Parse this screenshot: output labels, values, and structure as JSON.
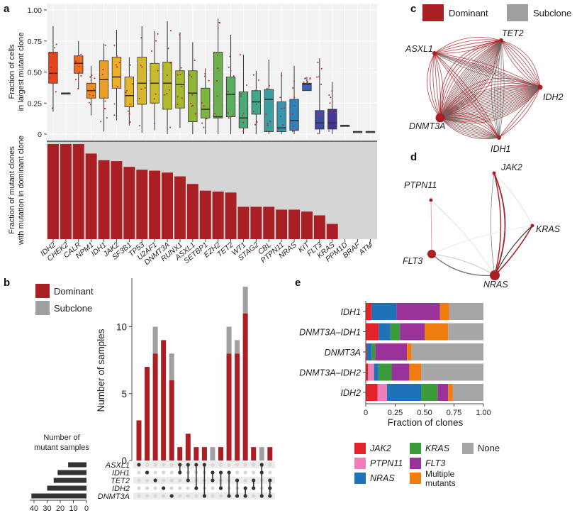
{
  "panel_labels": {
    "a": "a",
    "b": "b",
    "c": "c",
    "d": "d",
    "e": "e"
  },
  "colors": {
    "dominant": "#a91f24",
    "subclone": "#a0a0a0",
    "jak2": "#e3222a",
    "ptpn11": "#ef7fb8",
    "nras": "#1f72b8",
    "kras": "#3c9b3b",
    "flt3": "#993399",
    "multiple": "#f07d0f",
    "none": "#a6a6a6"
  },
  "chart_data": [
    {
      "id": "a_top",
      "type": "box",
      "ylabel": [
        "Fraction of cells",
        "in largest mutant clone"
      ],
      "yticks": [
        "0",
        "0.25",
        "0.50",
        "0.75",
        "1.00"
      ],
      "ylim": [
        0,
        1
      ],
      "categories": [
        "IDH2",
        "CHEK2",
        "CALR",
        "NPM1",
        "IDH1",
        "JAK2",
        "SF3B1",
        "TP53",
        "U2AF1",
        "DNMT3A",
        "RUNX1",
        "ASXL1",
        "SETBP1",
        "EZH2",
        "TET2",
        "WT1",
        "STAG2",
        "CBL",
        "PTPN11",
        "NRAS",
        "KIT",
        "FLT3",
        "KRAS",
        "PPM1D",
        "BRAF",
        "ATM"
      ],
      "box_colors": [
        "#e8431f",
        "#6b6b6b",
        "#ec6a21",
        "#ee8a20",
        "#ed9e26",
        "#efae2a",
        "#e0b72c",
        "#d4b72b",
        "#c9bb2a",
        "#b5b92c",
        "#a2b92e",
        "#8fb636",
        "#7db53f",
        "#6bb04f",
        "#5bad60",
        "#4aa977",
        "#40a68c",
        "#3a9fa0",
        "#3596b2",
        "#2e83bd",
        "#3563b5",
        "#3f4aa6",
        "#463598",
        "#6b6b6b",
        "#6b6b6b",
        "#6b6b6b"
      ],
      "boxes": [
        {
          "q1": 0.41,
          "med": 0.49,
          "q3": 0.66,
          "lo": 0.18,
          "hi": 0.87
        },
        {
          "q1": 0.33,
          "med": 0.33,
          "q3": 0.33,
          "lo": 0.33,
          "hi": 0.33
        },
        {
          "q1": 0.49,
          "med": 0.57,
          "q3": 0.63,
          "lo": 0.36,
          "hi": 0.75
        },
        {
          "q1": 0.29,
          "med": 0.35,
          "q3": 0.41,
          "lo": 0.15,
          "hi": 0.55
        },
        {
          "q1": 0.29,
          "med": 0.44,
          "q3": 0.59,
          "lo": 0.02,
          "hi": 0.73
        },
        {
          "q1": 0.37,
          "med": 0.46,
          "q3": 0.62,
          "lo": 0.11,
          "hi": 0.84
        },
        {
          "q1": 0.22,
          "med": 0.31,
          "q3": 0.46,
          "lo": 0.07,
          "hi": 0.62
        },
        {
          "q1": 0.24,
          "med": 0.41,
          "q3": 0.62,
          "lo": 0.01,
          "hi": 0.87
        },
        {
          "q1": 0.25,
          "med": 0.41,
          "q3": 0.57,
          "lo": 0.03,
          "hi": 0.83
        },
        {
          "q1": 0.2,
          "med": 0.41,
          "q3": 0.58,
          "lo": 0.0,
          "hi": 0.91
        },
        {
          "q1": 0.21,
          "med": 0.4,
          "q3": 0.51,
          "lo": 0.05,
          "hi": 0.82
        },
        {
          "q1": 0.1,
          "med": 0.33,
          "q3": 0.51,
          "lo": 0.0,
          "hi": 0.74
        },
        {
          "q1": 0.13,
          "med": 0.2,
          "q3": 0.37,
          "lo": 0.0,
          "hi": 0.53
        },
        {
          "q1": 0.13,
          "med": 0.14,
          "q3": 0.66,
          "lo": 0.0,
          "hi": 0.93
        },
        {
          "q1": 0.14,
          "med": 0.32,
          "q3": 0.46,
          "lo": 0.0,
          "hi": 0.8
        },
        {
          "q1": 0.05,
          "med": 0.13,
          "q3": 0.34,
          "lo": 0.0,
          "hi": 0.64
        },
        {
          "q1": 0.16,
          "med": 0.26,
          "q3": 0.35,
          "lo": 0.0,
          "hi": 0.51
        },
        {
          "q1": 0.02,
          "med": 0.28,
          "q3": 0.36,
          "lo": 0.0,
          "hi": 0.6
        },
        {
          "q1": 0.02,
          "med": 0.05,
          "q3": 0.26,
          "lo": 0.0,
          "hi": 0.5
        },
        {
          "q1": 0.03,
          "med": 0.11,
          "q3": 0.28,
          "lo": 0.0,
          "hi": 0.55
        },
        {
          "q1": 0.35,
          "med": 0.4,
          "q3": 0.41,
          "lo": 0.35,
          "hi": 0.46
        },
        {
          "q1": 0.04,
          "med": 0.09,
          "q3": 0.19,
          "lo": 0.0,
          "hi": 0.61
        },
        {
          "q1": 0.04,
          "med": 0.09,
          "q3": 0.2,
          "lo": 0.0,
          "hi": 0.42
        },
        {
          "q1": 0.07,
          "med": 0.07,
          "q3": 0.07,
          "lo": 0.07,
          "hi": 0.07
        },
        {
          "q1": 0.02,
          "med": 0.02,
          "q3": 0.02,
          "lo": 0.02,
          "hi": 0.02
        },
        {
          "q1": 0.02,
          "med": 0.02,
          "q3": 0.02,
          "lo": 0.02,
          "hi": 0.02
        }
      ]
    },
    {
      "id": "a_bottom",
      "type": "bar",
      "ylabel": [
        "Fraction of mutant clones",
        "with mutation in  dominant clone"
      ],
      "categories": [
        "IDH2",
        "CHEK2",
        "CALR",
        "NPM1",
        "IDH1",
        "JAK2",
        "SF3B1",
        "TP53",
        "U2AF1",
        "DNMT3A",
        "RUNX1",
        "ASXL1",
        "SETBP1",
        "EZH2",
        "TET2",
        "WT1",
        "STAG2",
        "CBL",
        "PTPN11",
        "NRAS",
        "KIT",
        "FLT3",
        "KRAS",
        "PPM1D",
        "BRAF",
        "ATM"
      ],
      "values": [
        1.0,
        1.0,
        1.0,
        0.9,
        0.83,
        0.82,
        0.76,
        0.73,
        0.72,
        0.7,
        0.66,
        0.58,
        0.51,
        0.5,
        0.49,
        0.34,
        0.34,
        0.34,
        0.31,
        0.31,
        0.29,
        0.25,
        0.16,
        0,
        0,
        0
      ],
      "ylim": [
        0,
        1
      ]
    },
    {
      "id": "b",
      "type": "bar",
      "subtype": "upset",
      "legend": [
        "Dominant",
        "Subclone"
      ],
      "ylabel": "Number of samples",
      "yticks": [
        "0",
        "5",
        "10"
      ],
      "ylim": [
        0,
        13
      ],
      "series": [
        {
          "name": "Dominant",
          "values": [
            3,
            7,
            8,
            9,
            6,
            1,
            2,
            1,
            1,
            0,
            1,
            8,
            8,
            11,
            1,
            0,
            1
          ]
        },
        {
          "name": "Subclone",
          "values": [
            0,
            0,
            2,
            0,
            2,
            0,
            0,
            0,
            0,
            1,
            0,
            2,
            1,
            2,
            0,
            1,
            0
          ]
        }
      ],
      "sets": [
        "ASXL1",
        "IDH1",
        "TET2",
        "IDH2",
        "DNMT3A"
      ],
      "set_sizes": [
        14,
        22,
        25,
        30,
        42
      ],
      "set_axis_label": [
        "Number of",
        "mutant samples"
      ],
      "set_axis_ticks": [
        "40",
        "30",
        "20",
        "10",
        "0"
      ],
      "combos": [
        [
          0
        ],
        [
          1
        ],
        [
          2
        ],
        [
          3
        ],
        [
          4
        ],
        [
          0,
          1
        ],
        [
          0,
          2
        ],
        [
          0,
          3
        ],
        [
          0,
          4
        ],
        [
          1,
          2
        ],
        [
          1,
          3
        ],
        [
          1,
          4
        ],
        [
          2,
          4
        ],
        [
          3,
          4
        ],
        [
          2,
          3
        ],
        [
          0,
          1,
          4
        ],
        [
          2,
          3,
          4
        ]
      ]
    },
    {
      "id": "e",
      "type": "bar",
      "subtype": "stacked-horizontal",
      "xlabel": "Fraction of clones",
      "xticks": [
        "0",
        "0.25",
        "0.50",
        "0.75",
        "1.00"
      ],
      "xlim": [
        0,
        1
      ],
      "categories": [
        "IDH1",
        "DNMT3A–IDH1",
        "DNMT3A",
        "DNMT3A–IDH2",
        "IDH2"
      ],
      "series": [
        {
          "name": "JAK2",
          "values": [
            0.05,
            0.11,
            0.01,
            0.02,
            0.1
          ]
        },
        {
          "name": "PTPN11",
          "values": [
            0,
            0,
            0,
            0.05,
            0.08
          ]
        },
        {
          "name": "NRAS",
          "values": [
            0.21,
            0.1,
            0.04,
            0.04,
            0.29
          ]
        },
        {
          "name": "KRAS",
          "values": [
            0,
            0.08,
            0.03,
            0.11,
            0.14
          ]
        },
        {
          "name": "FLT3",
          "values": [
            0.37,
            0.21,
            0.27,
            0.15,
            0.09
          ]
        },
        {
          "name": "Multiple mutants",
          "values": [
            0.08,
            0.2,
            0.04,
            0.1,
            0.04
          ]
        },
        {
          "name": "None",
          "values": [
            0.29,
            0.3,
            0.61,
            0.53,
            0.26
          ]
        }
      ],
      "legend": [
        "JAK2",
        "PTPN11",
        "NRAS",
        "KRAS",
        "FLT3",
        "Multiple",
        "mutants",
        "None"
      ]
    }
  ],
  "panel_c": {
    "legend": [
      "Dominant",
      "Subclone"
    ],
    "nodes": [
      "TET2",
      "ASXL1",
      "IDH2",
      "DNMT3A",
      "IDH1"
    ]
  },
  "panel_d": {
    "nodes": [
      "JAK2",
      "PTPN11",
      "KRAS",
      "FLT3",
      "NRAS"
    ]
  }
}
